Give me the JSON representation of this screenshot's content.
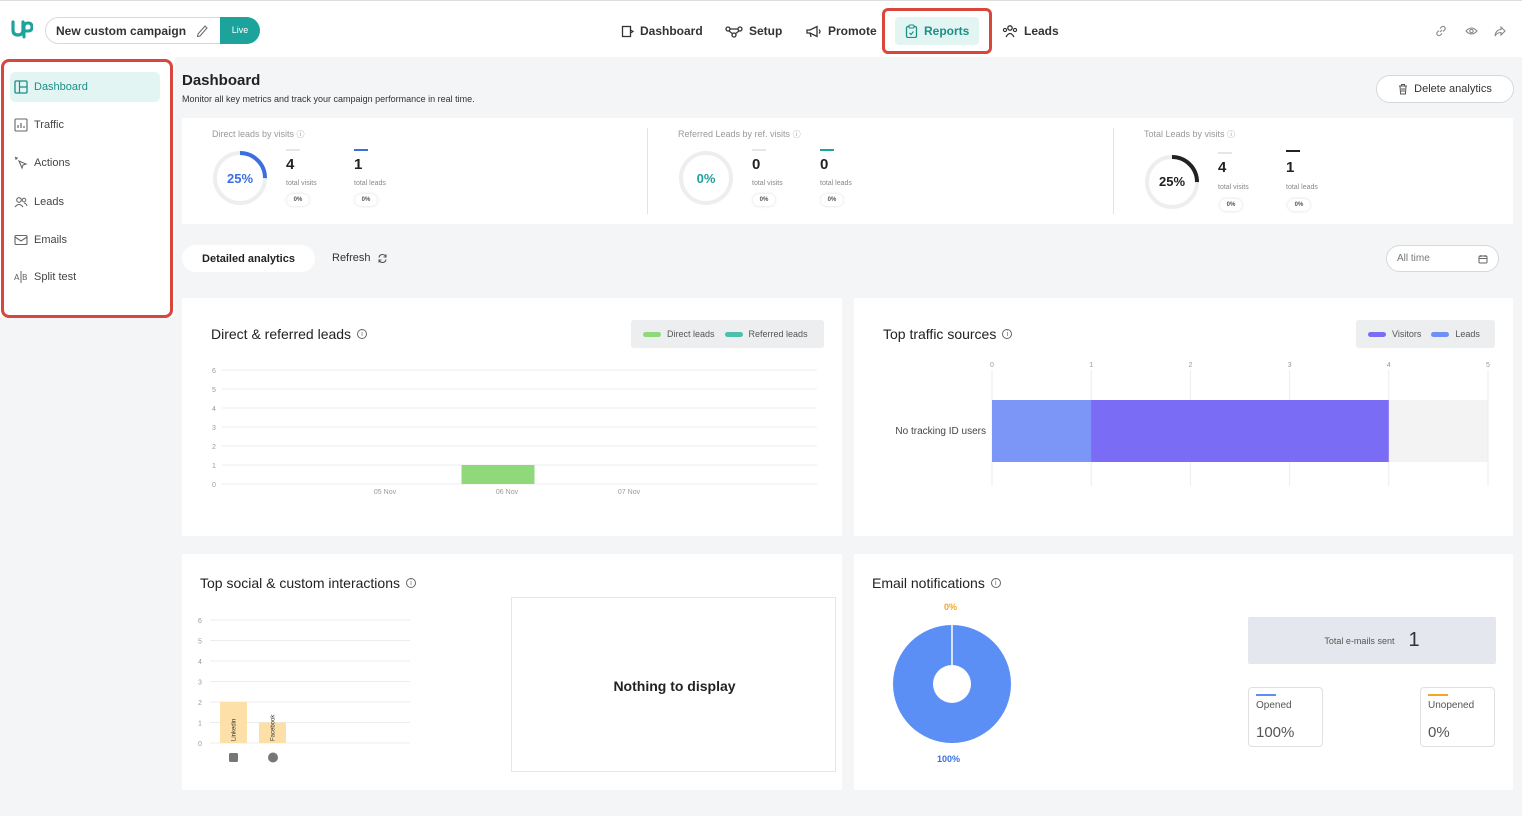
{
  "topbar": {
    "campaign_name": "New custom campaign",
    "status": "Live",
    "nav": [
      "Dashboard",
      "Setup",
      "Promote",
      "Reports",
      "Leads"
    ],
    "active_nav": "Reports",
    "highlight_color": "#d9463b",
    "accent_color": "#1ba39c"
  },
  "sidebar": {
    "items": [
      "Dashboard",
      "Traffic",
      "Actions",
      "Leads",
      "Emails",
      "Split test"
    ],
    "active": "Dashboard"
  },
  "header": {
    "title": "Dashboard",
    "subtitle": "Monitor all key metrics and track your campaign performance in real time.",
    "delete_button": "Delete analytics"
  },
  "stats": [
    {
      "label": "Direct leads by visits",
      "percent": "25%",
      "ratio": 0.25,
      "color": "#3b6fe0",
      "visits": "4",
      "visits_label": "total visits",
      "visits_pct": "0%",
      "leads": "1",
      "leads_label": "total leads",
      "leads_pct": "0%"
    },
    {
      "label": "Referred Leads by ref. visits",
      "percent": "0%",
      "ratio": 0,
      "color": "#1ba39c",
      "visits": "0",
      "visits_label": "total visits",
      "visits_pct": "0%",
      "leads": "0",
      "leads_label": "total leads",
      "leads_pct": "0%"
    },
    {
      "label": "Total Leads by visits",
      "percent": "25%",
      "ratio": 0.25,
      "color": "#222222",
      "visits": "4",
      "visits_label": "total visits",
      "visits_pct": "0%",
      "leads": "1",
      "leads_label": "total leads",
      "leads_pct": "0%"
    }
  ],
  "tabs": {
    "detailed": "Detailed analytics",
    "refresh": "Refresh",
    "range": "All time"
  },
  "panels": {
    "direct_referred": {
      "title": "Direct & referred leads",
      "legend": [
        {
          "name": "Direct leads",
          "color": "#8fd97a"
        },
        {
          "name": "Referred leads",
          "color": "#4dbfaa"
        }
      ]
    },
    "traffic_sources": {
      "title": "Top traffic sources",
      "legend": [
        {
          "name": "Visitors",
          "color": "#7b6cf6"
        },
        {
          "name": "Leads",
          "color": "#6f8ff5"
        }
      ]
    },
    "social": {
      "title": "Top social & custom interactions",
      "nothing": "Nothing to display"
    },
    "email": {
      "title": "Email notifications",
      "top_pct": "0%",
      "bottom_pct": "100%",
      "total_label": "Total e-mails sent",
      "total_value": "1",
      "opened_label": "Opened",
      "opened_value": "100%",
      "unopened_label": "Unopened",
      "unopened_value": "0%"
    }
  },
  "chart_data": [
    {
      "type": "bar",
      "categories": [
        "05 Nov",
        "06 Nov",
        "07 Nov"
      ],
      "series": [
        {
          "name": "Direct leads",
          "values": [
            0,
            1,
            0
          ]
        },
        {
          "name": "Referred leads",
          "values": [
            0,
            0,
            0
          ]
        }
      ],
      "ylim": [
        0,
        6
      ],
      "yticks": [
        "0",
        "1",
        "2",
        "3",
        "4",
        "5",
        "6"
      ],
      "grid": true,
      "legend": "top-right"
    },
    {
      "type": "bar",
      "orientation": "horizontal",
      "categories": [
        "No tracking ID users"
      ],
      "series": [
        {
          "name": "Leads",
          "values": [
            1
          ]
        },
        {
          "name": "Visitors",
          "values": [
            4
          ]
        }
      ],
      "xlim": [
        0,
        5
      ],
      "xticks": [
        "0",
        "1",
        "2",
        "3",
        "4",
        "5"
      ],
      "legend": "top-right"
    },
    {
      "type": "bar",
      "categories": [
        "Linkedin",
        "Facebook"
      ],
      "values": [
        2,
        1
      ],
      "ylim": [
        0,
        6
      ],
      "yticks": [
        "0",
        "1",
        "2",
        "3",
        "4",
        "5",
        "6"
      ],
      "color": "#fde0a8"
    },
    {
      "type": "pie",
      "labels": [
        "Opened",
        "Unopened"
      ],
      "values": [
        100,
        0
      ],
      "colors": [
        "#5b8ff6",
        "#f5a623"
      ]
    }
  ]
}
